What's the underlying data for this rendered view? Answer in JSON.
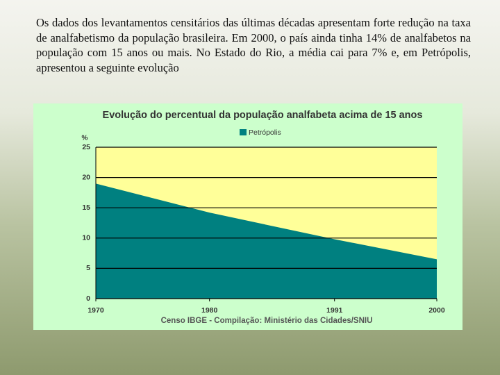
{
  "paragraph": "Os dados dos levantamentos censitários das últimas décadas apresentam forte redução na taxa de analfabetismo da população brasileira. Em 2000, o país ainda tinha 14% de analfabetos na população com 15 anos ou mais. No Estado do Rio, a média cai para 7% e, em Petrópolis, apresentou a seguinte evolução",
  "chart_data": {
    "type": "area",
    "title": "Evolução do percentual da população analfabeta acima de 15 anos",
    "y_label": "%",
    "source": "Censo IBGE - Compilação: Ministério das Cidades/SNIU",
    "x": [
      1970,
      1980,
      1991,
      2000
    ],
    "series": [
      {
        "name": "Petrópolis",
        "color": "#008080",
        "values": [
          19,
          14.2,
          9.8,
          6.5
        ]
      }
    ],
    "xlim": [
      1970,
      2000
    ],
    "xticks": [
      1970,
      1980,
      1991,
      2000
    ],
    "ylim": [
      0,
      25
    ],
    "yticks": [
      0,
      5,
      10,
      15,
      20,
      25
    ],
    "grid": true,
    "legend": "top",
    "plot_background": "#ffff99",
    "chart_background": "#ccffcc"
  }
}
